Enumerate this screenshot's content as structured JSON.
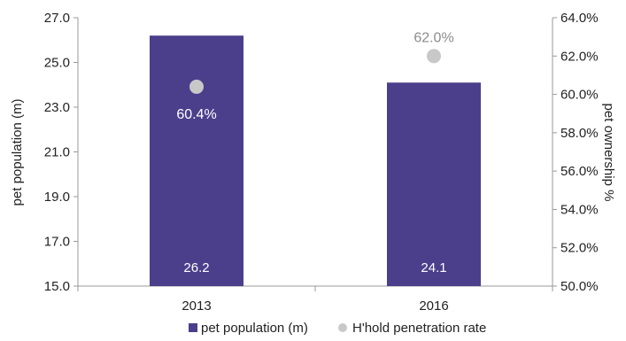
{
  "chart_data": {
    "type": "bar",
    "categories": [
      "2013",
      "2016"
    ],
    "series": [
      {
        "name": "pet population (m)",
        "kind": "bar",
        "axis": "left",
        "values": [
          26.2,
          24.1
        ],
        "labels": [
          "26.2",
          "24.1"
        ],
        "color": "#4B3F8C"
      },
      {
        "name": "H'hold penetration rate",
        "kind": "scatter",
        "axis": "right",
        "values": [
          60.4,
          62.0
        ],
        "labels": [
          "60.4%",
          "62.0%"
        ],
        "color": "#C8C8C8"
      }
    ],
    "ylabel": "pet population (m)",
    "y2label": "pet ownership %",
    "ylim": [
      15.0,
      27.0
    ],
    "y2lim": [
      50.0,
      64.0
    ],
    "yticks": [
      "15.0",
      "17.0",
      "19.0",
      "21.0",
      "23.0",
      "25.0",
      "27.0"
    ],
    "y2ticks": [
      "50.0%",
      "52.0%",
      "54.0%",
      "56.0%",
      "58.0%",
      "60.0%",
      "62.0%",
      "64.0%"
    ],
    "grid": false,
    "legend_position": "bottom"
  }
}
